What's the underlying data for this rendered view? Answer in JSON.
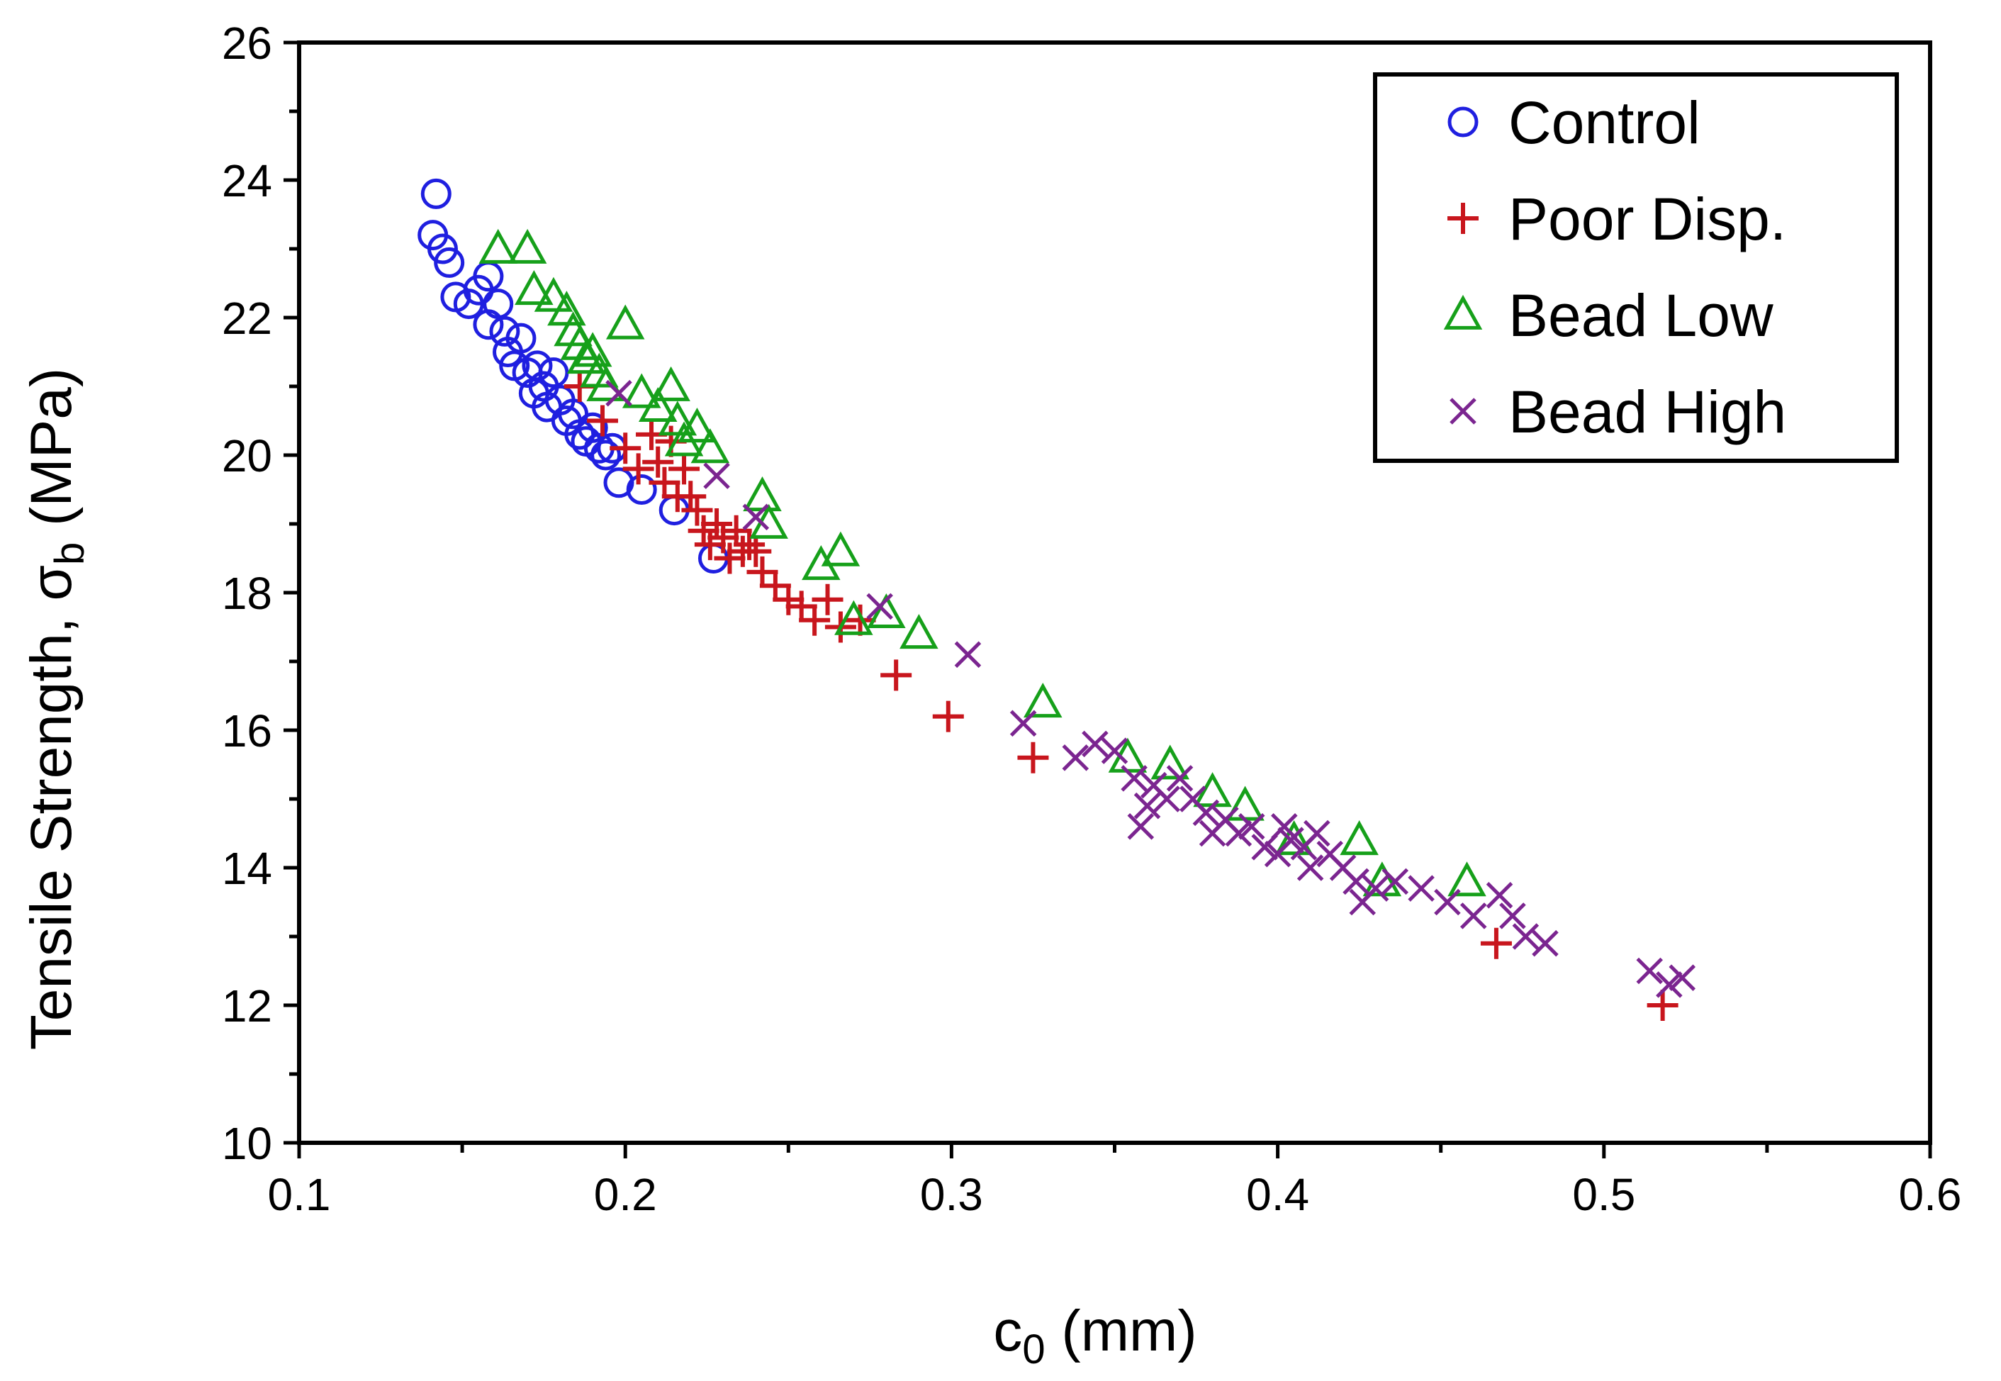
{
  "chart_data": {
    "type": "scatter",
    "title": "",
    "xlabel": "c",
    "xlabel_sub": "0",
    "xlabel_suffix": " (mm)",
    "ylabel": "Tensile Strength, σ",
    "ylabel_sub": "b",
    "ylabel_suffix": "  (MPa)",
    "xlim": [
      0.1,
      0.6
    ],
    "ylim": [
      10,
      26
    ],
    "x_ticks": [
      "0.1",
      "0.2",
      "0.3",
      "0.4",
      "0.5",
      "0.6"
    ],
    "y_ticks": [
      "10",
      "12",
      "14",
      "16",
      "18",
      "20",
      "22",
      "24",
      "26"
    ],
    "grid": false,
    "legend_position": "top-right",
    "series": [
      {
        "name": "Control",
        "marker": "circle",
        "color": "#1f1fe0",
        "points": [
          [
            0.142,
            23.8
          ],
          [
            0.141,
            23.2
          ],
          [
            0.144,
            23.0
          ],
          [
            0.146,
            22.8
          ],
          [
            0.148,
            22.3
          ],
          [
            0.152,
            22.2
          ],
          [
            0.155,
            22.4
          ],
          [
            0.158,
            22.6
          ],
          [
            0.158,
            21.9
          ],
          [
            0.161,
            22.2
          ],
          [
            0.163,
            21.8
          ],
          [
            0.164,
            21.5
          ],
          [
            0.166,
            21.3
          ],
          [
            0.168,
            21.7
          ],
          [
            0.17,
            21.2
          ],
          [
            0.172,
            20.9
          ],
          [
            0.173,
            21.3
          ],
          [
            0.175,
            21.0
          ],
          [
            0.176,
            20.7
          ],
          [
            0.178,
            21.2
          ],
          [
            0.18,
            20.8
          ],
          [
            0.182,
            20.5
          ],
          [
            0.184,
            20.6
          ],
          [
            0.186,
            20.3
          ],
          [
            0.188,
            20.2
          ],
          [
            0.19,
            20.4
          ],
          [
            0.192,
            20.1
          ],
          [
            0.194,
            20.0
          ],
          [
            0.196,
            20.1
          ],
          [
            0.198,
            19.6
          ],
          [
            0.205,
            19.5
          ],
          [
            0.215,
            19.2
          ],
          [
            0.227,
            18.5
          ]
        ]
      },
      {
        "name": "Poor Disp.",
        "marker": "plus",
        "color": "#c8161d",
        "points": [
          [
            0.186,
            21.0
          ],
          [
            0.193,
            20.5
          ],
          [
            0.2,
            20.1
          ],
          [
            0.204,
            19.8
          ],
          [
            0.208,
            20.3
          ],
          [
            0.21,
            19.9
          ],
          [
            0.212,
            19.6
          ],
          [
            0.214,
            20.2
          ],
          [
            0.216,
            19.4
          ],
          [
            0.218,
            19.8
          ],
          [
            0.22,
            19.4
          ],
          [
            0.222,
            19.2
          ],
          [
            0.224,
            18.9
          ],
          [
            0.226,
            18.7
          ],
          [
            0.228,
            19.0
          ],
          [
            0.23,
            18.8
          ],
          [
            0.232,
            18.5
          ],
          [
            0.234,
            18.9
          ],
          [
            0.236,
            18.6
          ],
          [
            0.238,
            18.7
          ],
          [
            0.24,
            18.6
          ],
          [
            0.242,
            18.3
          ],
          [
            0.246,
            18.1
          ],
          [
            0.25,
            17.9
          ],
          [
            0.254,
            17.8
          ],
          [
            0.258,
            17.6
          ],
          [
            0.262,
            17.9
          ],
          [
            0.266,
            17.5
          ],
          [
            0.272,
            17.6
          ],
          [
            0.283,
            16.8
          ],
          [
            0.299,
            16.2
          ],
          [
            0.325,
            15.6
          ],
          [
            0.467,
            12.9
          ],
          [
            0.518,
            12.0
          ]
        ]
      },
      {
        "name": "Bead Low",
        "marker": "triangle",
        "color": "#16a01a",
        "points": [
          [
            0.161,
            23.0
          ],
          [
            0.17,
            23.0
          ],
          [
            0.172,
            22.4
          ],
          [
            0.178,
            22.3
          ],
          [
            0.182,
            22.1
          ],
          [
            0.184,
            21.8
          ],
          [
            0.186,
            21.6
          ],
          [
            0.188,
            21.4
          ],
          [
            0.19,
            21.5
          ],
          [
            0.192,
            21.2
          ],
          [
            0.194,
            21.0
          ],
          [
            0.2,
            21.9
          ],
          [
            0.205,
            20.9
          ],
          [
            0.21,
            20.7
          ],
          [
            0.214,
            21.0
          ],
          [
            0.216,
            20.5
          ],
          [
            0.218,
            20.2
          ],
          [
            0.222,
            20.4
          ],
          [
            0.226,
            20.1
          ],
          [
            0.242,
            19.4
          ],
          [
            0.244,
            19.0
          ],
          [
            0.26,
            18.4
          ],
          [
            0.266,
            18.6
          ],
          [
            0.27,
            17.6
          ],
          [
            0.28,
            17.7
          ],
          [
            0.29,
            17.4
          ],
          [
            0.328,
            16.4
          ],
          [
            0.354,
            15.6
          ],
          [
            0.367,
            15.5
          ],
          [
            0.38,
            15.1
          ],
          [
            0.39,
            14.9
          ],
          [
            0.405,
            14.4
          ],
          [
            0.425,
            14.4
          ],
          [
            0.432,
            13.8
          ],
          [
            0.458,
            13.8
          ]
        ]
      },
      {
        "name": "Bead High",
        "marker": "x",
        "color": "#7b2590",
        "points": [
          [
            0.198,
            20.9
          ],
          [
            0.228,
            19.7
          ],
          [
            0.24,
            19.1
          ],
          [
            0.278,
            17.8
          ],
          [
            0.305,
            17.1
          ],
          [
            0.322,
            16.1
          ],
          [
            0.338,
            15.6
          ],
          [
            0.344,
            15.8
          ],
          [
            0.35,
            15.7
          ],
          [
            0.356,
            15.3
          ],
          [
            0.358,
            14.6
          ],
          [
            0.36,
            14.9
          ],
          [
            0.362,
            15.2
          ],
          [
            0.366,
            15.0
          ],
          [
            0.37,
            15.3
          ],
          [
            0.374,
            15.0
          ],
          [
            0.378,
            14.8
          ],
          [
            0.38,
            14.5
          ],
          [
            0.384,
            14.7
          ],
          [
            0.388,
            14.5
          ],
          [
            0.392,
            14.6
          ],
          [
            0.396,
            14.3
          ],
          [
            0.4,
            14.2
          ],
          [
            0.402,
            14.6
          ],
          [
            0.404,
            14.4
          ],
          [
            0.408,
            14.3
          ],
          [
            0.41,
            14.0
          ],
          [
            0.412,
            14.5
          ],
          [
            0.416,
            14.2
          ],
          [
            0.42,
            14.0
          ],
          [
            0.424,
            13.8
          ],
          [
            0.426,
            13.5
          ],
          [
            0.43,
            13.7
          ],
          [
            0.436,
            13.8
          ],
          [
            0.444,
            13.7
          ],
          [
            0.452,
            13.5
          ],
          [
            0.46,
            13.3
          ],
          [
            0.468,
            13.6
          ],
          [
            0.472,
            13.3
          ],
          [
            0.476,
            13.0
          ],
          [
            0.482,
            12.9
          ],
          [
            0.514,
            12.5
          ],
          [
            0.52,
            12.3
          ],
          [
            0.524,
            12.4
          ]
        ]
      }
    ]
  }
}
